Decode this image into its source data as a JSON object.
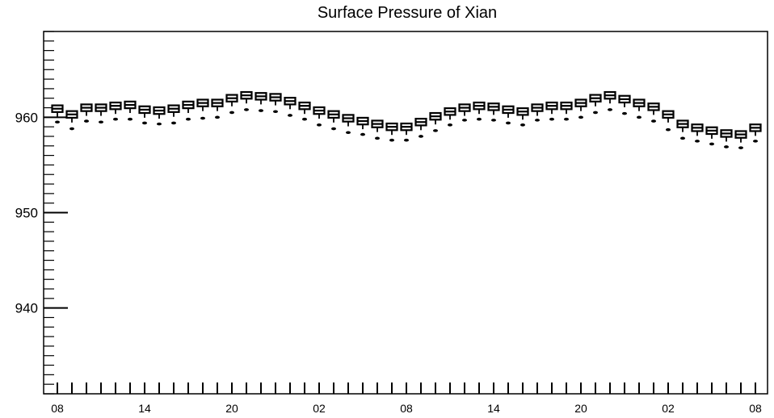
{
  "chart_data": {
    "type": "box",
    "title": "Surface Pressure of Xian",
    "xlabel": "",
    "ylabel": "",
    "ylim": [
      931,
      969
    ],
    "y_ticks": [
      940,
      950,
      960
    ],
    "x_tick_labels": [
      "08",
      "14",
      "20",
      "02",
      "08",
      "14",
      "20",
      "02",
      "08"
    ],
    "x_tick_label_indices": [
      0,
      6,
      12,
      18,
      24,
      30,
      36,
      42,
      48
    ],
    "n_boxes": 49,
    "median": [
      960.9,
      960.3,
      961.0,
      961.0,
      961.2,
      961.3,
      960.8,
      960.7,
      960.9,
      961.3,
      961.5,
      961.5,
      962.0,
      962.3,
      962.2,
      962.1,
      961.7,
      961.2,
      960.7,
      960.3,
      959.9,
      959.6,
      959.3,
      959.0,
      959.0,
      959.5,
      960.1,
      960.6,
      961.0,
      961.2,
      961.1,
      960.8,
      960.6,
      961.0,
      961.2,
      961.2,
      961.5,
      962.0,
      962.3,
      961.9,
      961.5,
      961.1,
      960.3,
      959.3,
      958.9,
      958.6,
      958.3,
      958.2,
      958.9
    ],
    "outlier_low": [
      959.5,
      958.8,
      959.6,
      959.5,
      959.8,
      959.8,
      959.4,
      959.3,
      959.4,
      959.8,
      959.9,
      960.0,
      960.5,
      960.8,
      960.7,
      960.6,
      960.2,
      959.8,
      959.2,
      958.8,
      958.4,
      958.2,
      957.8,
      957.6,
      957.6,
      958.0,
      958.6,
      959.2,
      959.7,
      959.8,
      959.7,
      959.4,
      959.2,
      959.7,
      959.8,
      959.8,
      960.0,
      960.5,
      960.8,
      960.4,
      960.0,
      959.6,
      958.7,
      957.8,
      957.5,
      957.2,
      956.9,
      956.8,
      957.5
    ]
  }
}
